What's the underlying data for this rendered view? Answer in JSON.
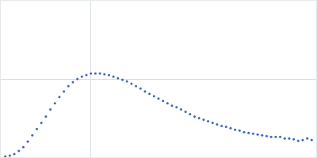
{
  "chart_data": {
    "type": "scatter",
    "marker": "circle",
    "color": "#3b64b4",
    "x": [
      0.05,
      0.1,
      0.15,
      0.2,
      0.25,
      0.3,
      0.35,
      0.4,
      0.45,
      0.5,
      0.55,
      0.6,
      0.65,
      0.7,
      0.75,
      0.8,
      0.85,
      0.9,
      0.95,
      1.0,
      1.05,
      1.1,
      1.15,
      1.2,
      1.25,
      1.3,
      1.35,
      1.4,
      1.45,
      1.5,
      1.55,
      1.6,
      1.65,
      1.7,
      1.75,
      1.8,
      1.85,
      1.9,
      1.95,
      2.0,
      2.05,
      2.1,
      2.15,
      2.2,
      2.25,
      2.3,
      2.35,
      2.4,
      2.45,
      2.5,
      2.55,
      2.6,
      2.65,
      2.7,
      2.75,
      2.8,
      2.85,
      2.9,
      2.95,
      3.0,
      3.05,
      3.1,
      3.15,
      3.2,
      3.25,
      3.3,
      3.35,
      3.4,
      3.45
    ],
    "values": [
      0.01,
      0.02,
      0.04,
      0.08,
      0.13,
      0.2,
      0.28,
      0.36,
      0.44,
      0.52,
      0.61,
      0.69,
      0.77,
      0.84,
      0.91,
      0.96,
      1.0,
      1.03,
      1.05,
      1.07,
      1.07,
      1.07,
      1.06,
      1.05,
      1.03,
      1.01,
      0.99,
      0.97,
      0.94,
      0.91,
      0.88,
      0.84,
      0.81,
      0.78,
      0.75,
      0.72,
      0.69,
      0.66,
      0.64,
      0.61,
      0.58,
      0.55,
      0.52,
      0.5,
      0.48,
      0.46,
      0.44,
      0.42,
      0.4,
      0.39,
      0.37,
      0.35,
      0.34,
      0.32,
      0.31,
      0.3,
      0.29,
      0.28,
      0.27,
      0.26,
      0.26,
      0.26,
      0.24,
      0.24,
      0.23,
      0.21,
      0.22,
      0.24,
      0.22
    ],
    "xlim": [
      0,
      3.5
    ],
    "xticks": [
      1
    ],
    "ylim": [
      0,
      2
    ],
    "yticks": [
      1
    ],
    "grid": true,
    "tick_labels": false
  }
}
